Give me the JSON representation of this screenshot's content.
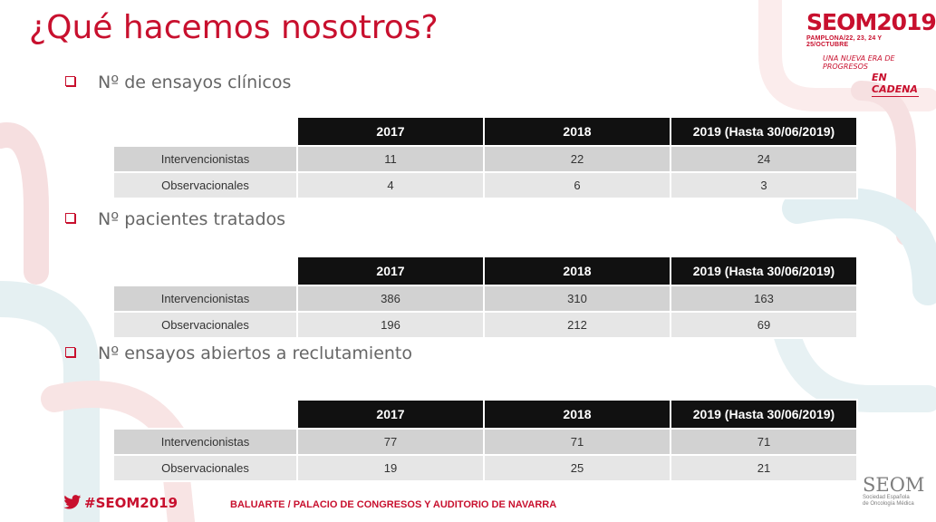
{
  "title": "¿Qué hacemos nosotros?",
  "logo": {
    "main": "SEOM",
    "year": "2019",
    "subtitle": "PAMPLONA/22, 23, 24 Y 25/OCTUBRE",
    "tagline1": "UNA NUEVA ERA DE PROGRESOS",
    "tagline2": "EN CADENA"
  },
  "colors": {
    "accent": "#c8102e",
    "header_bg": "#111111",
    "row_light": "#e6e6e6",
    "row_dark": "#d2d2d2"
  },
  "sections": [
    {
      "heading": "Nº de ensayos clínicos",
      "columns": [
        "2017",
        "2018",
        "2019 (Hasta 30/06/2019)"
      ],
      "rows": [
        {
          "label": "Intervencionistas",
          "values": [
            "11",
            "22",
            "24"
          ]
        },
        {
          "label": "Observacionales",
          "values": [
            "4",
            "6",
            "3"
          ]
        }
      ]
    },
    {
      "heading": "Nº pacientes tratados",
      "columns": [
        "2017",
        "2018",
        "2019 (Hasta 30/06/2019)"
      ],
      "rows": [
        {
          "label": "Intervencionistas",
          "values": [
            "386",
            "310",
            "163"
          ]
        },
        {
          "label": "Observacionales",
          "values": [
            "196",
            "212",
            "69"
          ]
        }
      ]
    },
    {
      "heading": "Nº ensayos abiertos a reclutamiento",
      "columns": [
        "2017",
        "2018",
        "2019 (Hasta 30/06/2019)"
      ],
      "rows": [
        {
          "label": "Intervencionistas",
          "values": [
            "77",
            "71",
            "71"
          ]
        },
        {
          "label": "Observacionales",
          "values": [
            "19",
            "25",
            "21"
          ]
        }
      ]
    }
  ],
  "footer": {
    "hashtag": "#SEOM2019",
    "venue_main": "BALUARTE",
    "venue_sep": "/",
    "venue_rest": "PALACIO DE CONGRESOS Y AUDITORIO DE NAVARRA",
    "logo_big": "SEOM",
    "logo_small1": "Sociedad Española",
    "logo_small2": "de Oncología Médica"
  }
}
